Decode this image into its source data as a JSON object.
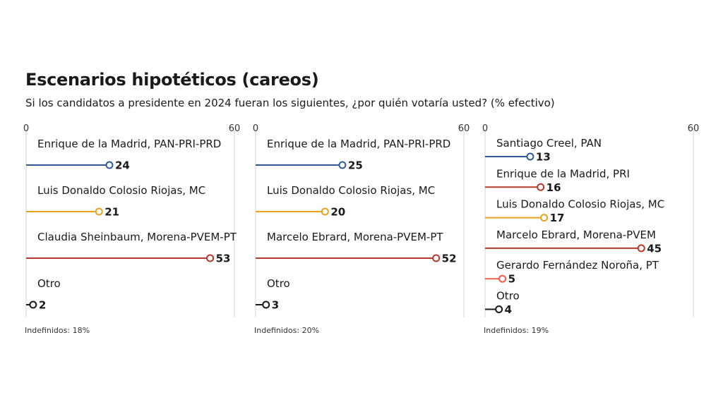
{
  "title": "Escenarios hipotéticos (careos)",
  "subtitle": "Si los candidatos a presidente en 2024 fueran los siguientes, ¿por quién votaría usted? (% efectivo)",
  "colors": {
    "blue": "#2d5b9a",
    "orange": "#e9a21e",
    "red": "#b93a2a",
    "salmon": "#e8604c",
    "black": "#1a1a1a",
    "grid": "#d6d6d6"
  },
  "chart_data": [
    {
      "type": "bar",
      "xlim": [
        0,
        60
      ],
      "ticks": [
        0,
        60
      ],
      "categories": [
        "Enrique de la Madrid, PAN-PRI-PRD",
        "Luis Donaldo Colosio Riojas, MC",
        "Claudia Sheinbaum, Morena-PVEM-PT",
        "Otro"
      ],
      "values": [
        24,
        21,
        53,
        2
      ],
      "colors": [
        "blue",
        "orange",
        "red",
        "black"
      ],
      "note": "Indefinidos: 18%"
    },
    {
      "type": "bar",
      "xlim": [
        0,
        60
      ],
      "ticks": [
        0,
        60
      ],
      "categories": [
        "Enrique de la Madrid, PAN-PRI-PRD",
        "Luis Donaldo Colosio Riojas, MC",
        "Marcelo Ebrard, Morena-PVEM-PT",
        "Otro"
      ],
      "values": [
        25,
        20,
        52,
        3
      ],
      "colors": [
        "blue",
        "orange",
        "red",
        "black"
      ],
      "note": "Indefinidos: 20%"
    },
    {
      "type": "bar",
      "xlim": [
        0,
        60
      ],
      "ticks": [
        0,
        60
      ],
      "categories": [
        "Santiago Creel, PAN",
        "Enrique de la Madrid, PRI",
        "Luis Donaldo Colosio Riojas, MC",
        "Marcelo Ebrard, Morena-PVEM",
        "Gerardo Fernández Noroña, PT",
        "Otro"
      ],
      "values": [
        13,
        16,
        17,
        45,
        5,
        4
      ],
      "colors": [
        "blue",
        "red",
        "orange",
        "red",
        "salmon",
        "black"
      ],
      "note": "Indefinidos: 19%"
    }
  ]
}
